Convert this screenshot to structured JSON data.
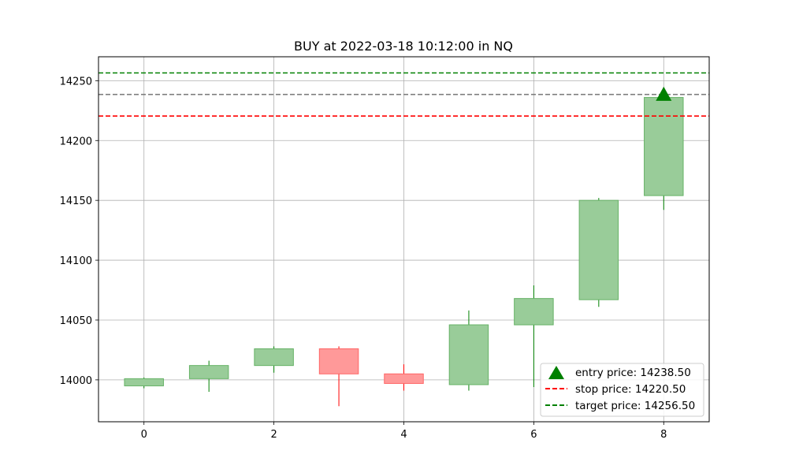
{
  "chart_data": {
    "type": "candlestick",
    "title": "BUY at 2022-03-18 10:12:00 in NQ",
    "xlabel": "",
    "ylabel": "",
    "xlim": [
      -0.7,
      8.7
    ],
    "ylim": [
      13965,
      14270
    ],
    "x_ticks": [
      0,
      2,
      4,
      6,
      8
    ],
    "y_ticks": [
      14000,
      14050,
      14100,
      14150,
      14200,
      14250
    ],
    "grid": true,
    "legend_position": "lower-right",
    "candles": [
      {
        "x": 0,
        "open": 13995,
        "high": 14002,
        "low": 13993,
        "close": 14001
      },
      {
        "x": 1,
        "open": 14001,
        "high": 14016,
        "low": 13990,
        "close": 14012
      },
      {
        "x": 2,
        "open": 14012,
        "high": 14028,
        "low": 14006,
        "close": 14026
      },
      {
        "x": 3,
        "open": 14026,
        "high": 14028,
        "low": 13978,
        "close": 14005
      },
      {
        "x": 4,
        "open": 14005,
        "high": 14013,
        "low": 13991,
        "close": 13997
      },
      {
        "x": 5,
        "open": 13996,
        "high": 14058,
        "low": 13991,
        "close": 14046
      },
      {
        "x": 6,
        "open": 14046,
        "high": 14079,
        "low": 13994,
        "close": 14068
      },
      {
        "x": 7,
        "open": 14067,
        "high": 14152,
        "low": 14061,
        "close": 14150
      },
      {
        "x": 8,
        "open": 14154,
        "high": 14238,
        "low": 14142,
        "close": 14236
      }
    ],
    "levels": {
      "entry": {
        "value": 14238.5,
        "x": 8,
        "label": "entry price: 14238.50",
        "color": "#008000",
        "line_color": "#808080"
      },
      "stop": {
        "value": 14220.5,
        "label": "stop price: 14220.50",
        "color": "#ff0000"
      },
      "target": {
        "value": 14256.5,
        "label": "target price: 14256.50",
        "color": "#008000"
      }
    },
    "colors": {
      "up_fill": "#99cc99",
      "up_edge": "#66b266",
      "up_wick": "#008000",
      "down_fill": "#ff9999",
      "down_edge": "#ff6666",
      "down_wick": "#ff0000",
      "grid": "#b0b0b0"
    }
  }
}
